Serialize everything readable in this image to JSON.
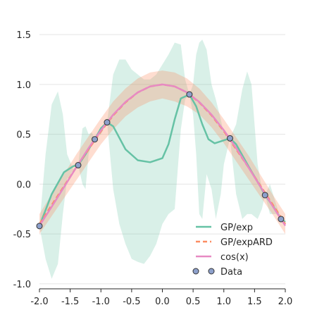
{
  "chart_data": {
    "type": "line",
    "xlim": [
      -2.0,
      2.0
    ],
    "ylim": [
      -1.05,
      1.6
    ],
    "xticks": [
      "-2.0",
      "-1.5",
      "-1.0",
      "-0.5",
      "0.0",
      "0.5",
      "1.0",
      "1.5",
      "2.0"
    ],
    "yticks": [
      "-1.0",
      "-0.5",
      "0.0",
      "0.5",
      "1.0",
      "1.5"
    ],
    "grid": true,
    "legend_position": "lower-right",
    "data_points": {
      "name": "Data",
      "color": "#8da0cb",
      "x": [
        -2.0,
        -1.37,
        -1.1,
        -0.9,
        0.44,
        1.1,
        1.67,
        1.93
      ],
      "y": [
        -0.42,
        0.19,
        0.45,
        0.62,
        0.9,
        0.46,
        -0.11,
        -0.35
      ]
    },
    "series": [
      {
        "name": "GP/exp",
        "color": "#66c2a5",
        "style": "solid",
        "x": [
          -2.0,
          -1.8,
          -1.6,
          -1.45,
          -1.37,
          -1.25,
          -1.1,
          -1.0,
          -0.9,
          -0.8,
          -0.6,
          -0.4,
          -0.2,
          0.0,
          0.1,
          0.2,
          0.3,
          0.44,
          0.55,
          0.65,
          0.75,
          0.85,
          1.0,
          1.1,
          1.2,
          1.4,
          1.6,
          1.67,
          1.8,
          1.93,
          2.0
        ],
        "y": [
          -0.42,
          -0.1,
          0.12,
          0.18,
          0.19,
          0.3,
          0.45,
          0.56,
          0.62,
          0.58,
          0.35,
          0.24,
          0.22,
          0.26,
          0.4,
          0.65,
          0.86,
          0.9,
          0.78,
          0.6,
          0.45,
          0.41,
          0.44,
          0.46,
          0.4,
          0.18,
          -0.03,
          -0.11,
          -0.22,
          -0.35,
          -0.38
        ]
      },
      {
        "name": "GP/expARD",
        "color": "#fc8d62",
        "style": "dashed",
        "x": [
          -2.0,
          -1.8,
          -1.6,
          -1.4,
          -1.2,
          -1.0,
          -0.8,
          -0.6,
          -0.4,
          -0.2,
          0.0,
          0.2,
          0.4,
          0.6,
          0.8,
          1.0,
          1.2,
          1.4,
          1.6,
          1.8,
          2.0
        ],
        "y": [
          -0.4,
          -0.21,
          -0.02,
          0.17,
          0.35,
          0.53,
          0.69,
          0.82,
          0.92,
          0.98,
          1.0,
          0.98,
          0.92,
          0.82,
          0.69,
          0.53,
          0.35,
          0.17,
          -0.02,
          -0.21,
          -0.4
        ]
      },
      {
        "name": "cos(x)",
        "color": "#e78ac3",
        "style": "solid",
        "x": [
          -2.0,
          -1.8,
          -1.6,
          -1.4,
          -1.2,
          -1.0,
          -0.8,
          -0.6,
          -0.4,
          -0.2,
          0.0,
          0.2,
          0.4,
          0.6,
          0.8,
          1.0,
          1.2,
          1.4,
          1.6,
          1.8,
          2.0
        ],
        "y": [
          -0.416,
          -0.227,
          -0.029,
          0.17,
          0.362,
          0.54,
          0.697,
          0.825,
          0.921,
          0.98,
          1.0,
          0.98,
          0.921,
          0.825,
          0.697,
          0.54,
          0.362,
          0.17,
          -0.029,
          -0.227,
          -0.416
        ]
      }
    ],
    "bands": [
      {
        "series": "GP/exp",
        "color": "#66c2a5",
        "opacity": 0.25,
        "x": [
          -2.0,
          -1.9,
          -1.8,
          -1.7,
          -1.62,
          -1.55,
          -1.45,
          -1.37,
          -1.3,
          -1.25,
          -1.2,
          -1.15,
          -1.1,
          -1.0,
          -0.9,
          -0.8,
          -0.7,
          -0.6,
          -0.5,
          -0.4,
          -0.3,
          -0.2,
          -0.1,
          0.0,
          0.1,
          0.2,
          0.3,
          0.37,
          0.44,
          0.5,
          0.55,
          0.6,
          0.65,
          0.72,
          0.8,
          0.87,
          0.95,
          1.0,
          1.1,
          1.2,
          1.3,
          1.38,
          1.45,
          1.55,
          1.62,
          1.67,
          1.75,
          1.85,
          1.93,
          2.0
        ],
        "lower": [
          -0.42,
          -0.75,
          -0.95,
          -0.8,
          -0.3,
          0.05,
          0.14,
          0.19,
          0.0,
          -0.05,
          0.3,
          0.4,
          0.45,
          0.5,
          0.62,
          -0.05,
          -0.4,
          -0.6,
          -0.75,
          -0.78,
          -0.8,
          -0.72,
          -0.6,
          -0.4,
          -0.3,
          -0.25,
          0.55,
          0.85,
          0.9,
          0.7,
          0.3,
          -0.3,
          -0.35,
          0.1,
          -0.05,
          -0.35,
          -0.1,
          0.2,
          0.46,
          -0.1,
          -0.35,
          -0.3,
          -0.3,
          -0.35,
          -0.25,
          -0.11,
          -0.3,
          -0.3,
          -0.35,
          -0.42
        ],
        "upper": [
          -0.42,
          0.3,
          0.8,
          0.93,
          0.7,
          0.3,
          0.15,
          0.19,
          0.56,
          0.58,
          0.5,
          0.52,
          0.45,
          0.55,
          0.62,
          1.1,
          1.25,
          1.25,
          1.15,
          1.1,
          1.05,
          1.05,
          1.1,
          1.2,
          1.3,
          1.42,
          1.4,
          1.05,
          0.9,
          1.0,
          1.3,
          1.42,
          1.45,
          1.35,
          1.0,
          0.85,
          0.65,
          0.5,
          0.46,
          0.6,
          0.95,
          1.13,
          1.0,
          0.2,
          -0.05,
          -0.11,
          0.0,
          -0.2,
          -0.35,
          -0.42
        ]
      },
      {
        "series": "GP/expARD",
        "color": "#fc8d62",
        "opacity": 0.3,
        "x": [
          -2.0,
          -1.8,
          -1.6,
          -1.4,
          -1.2,
          -1.0,
          -0.8,
          -0.6,
          -0.4,
          -0.2,
          0.0,
          0.2,
          0.4,
          0.6,
          0.8,
          1.0,
          1.2,
          1.4,
          1.6,
          1.8,
          2.0
        ],
        "lower": [
          -0.5,
          -0.32,
          -0.14,
          0.04,
          0.22,
          0.4,
          0.55,
          0.68,
          0.77,
          0.83,
          0.86,
          0.83,
          0.78,
          0.7,
          0.57,
          0.41,
          0.23,
          0.05,
          -0.13,
          -0.31,
          -0.5
        ],
        "upper": [
          -0.3,
          -0.1,
          0.1,
          0.3,
          0.48,
          0.66,
          0.83,
          0.96,
          1.06,
          1.12,
          1.14,
          1.12,
          1.06,
          0.96,
          0.82,
          0.65,
          0.47,
          0.29,
          0.09,
          -0.11,
          -0.3
        ]
      }
    ]
  }
}
